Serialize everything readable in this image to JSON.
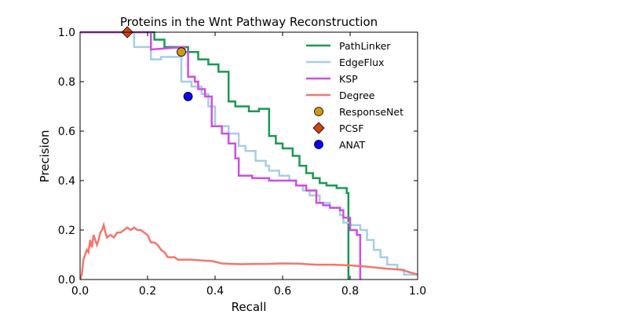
{
  "chart_data": {
    "type": "line",
    "title": "Proteins in the Wnt Pathway Reconstruction",
    "xlabel": "Recall",
    "ylabel": "Precision",
    "xlim": [
      0.0,
      1.0
    ],
    "ylim": [
      0.0,
      1.0
    ],
    "xticks": [
      "0.0",
      "0.2",
      "0.4",
      "0.6",
      "0.8",
      "1.0"
    ],
    "yticks": [
      "0.0",
      "0.2",
      "0.4",
      "0.6",
      "0.8",
      "1.0"
    ],
    "grid": false,
    "legend_position": "top-right",
    "series": [
      {
        "name": "PathLinker",
        "color": "#1a9850",
        "kind": "step",
        "points": [
          [
            0.0,
            1.0
          ],
          [
            0.22,
            1.0
          ],
          [
            0.22,
            0.97
          ],
          [
            0.25,
            0.97
          ],
          [
            0.25,
            0.94
          ],
          [
            0.32,
            0.94
          ],
          [
            0.32,
            0.92
          ],
          [
            0.35,
            0.92
          ],
          [
            0.35,
            0.89
          ],
          [
            0.38,
            0.89
          ],
          [
            0.38,
            0.87
          ],
          [
            0.41,
            0.87
          ],
          [
            0.41,
            0.84
          ],
          [
            0.44,
            0.84
          ],
          [
            0.44,
            0.72
          ],
          [
            0.46,
            0.72
          ],
          [
            0.46,
            0.7
          ],
          [
            0.5,
            0.7
          ],
          [
            0.5,
            0.68
          ],
          [
            0.53,
            0.68
          ],
          [
            0.53,
            0.69
          ],
          [
            0.56,
            0.69
          ],
          [
            0.56,
            0.58
          ],
          [
            0.58,
            0.58
          ],
          [
            0.58,
            0.55
          ],
          [
            0.6,
            0.55
          ],
          [
            0.6,
            0.53
          ],
          [
            0.63,
            0.53
          ],
          [
            0.63,
            0.5
          ],
          [
            0.65,
            0.5
          ],
          [
            0.65,
            0.46
          ],
          [
            0.67,
            0.46
          ],
          [
            0.67,
            0.43
          ],
          [
            0.69,
            0.43
          ],
          [
            0.69,
            0.41
          ],
          [
            0.71,
            0.41
          ],
          [
            0.71,
            0.39
          ],
          [
            0.73,
            0.39
          ],
          [
            0.73,
            0.38
          ],
          [
            0.76,
            0.38
          ],
          [
            0.76,
            0.37
          ],
          [
            0.79,
            0.37
          ],
          [
            0.79,
            0.35
          ],
          [
            0.795,
            0.35
          ],
          [
            0.795,
            0.33
          ],
          [
            0.795,
            0.0
          ]
        ]
      },
      {
        "name": "EdgeFlux",
        "color": "#a6cee3",
        "kind": "step",
        "points": [
          [
            0.0,
            1.0
          ],
          [
            0.16,
            1.0
          ],
          [
            0.16,
            0.94
          ],
          [
            0.21,
            0.94
          ],
          [
            0.21,
            0.89
          ],
          [
            0.24,
            0.89
          ],
          [
            0.24,
            0.9
          ],
          [
            0.3,
            0.9
          ],
          [
            0.3,
            0.8
          ],
          [
            0.33,
            0.8
          ],
          [
            0.33,
            0.78
          ],
          [
            0.36,
            0.78
          ],
          [
            0.36,
            0.75
          ],
          [
            0.38,
            0.75
          ],
          [
            0.38,
            0.7
          ],
          [
            0.4,
            0.7
          ],
          [
            0.4,
            0.62
          ],
          [
            0.44,
            0.62
          ],
          [
            0.44,
            0.59
          ],
          [
            0.47,
            0.59
          ],
          [
            0.47,
            0.54
          ],
          [
            0.49,
            0.54
          ],
          [
            0.49,
            0.52
          ],
          [
            0.52,
            0.52
          ],
          [
            0.52,
            0.48
          ],
          [
            0.55,
            0.48
          ],
          [
            0.55,
            0.46
          ],
          [
            0.56,
            0.46
          ],
          [
            0.56,
            0.44
          ],
          [
            0.59,
            0.44
          ],
          [
            0.59,
            0.42
          ],
          [
            0.62,
            0.42
          ],
          [
            0.62,
            0.4
          ],
          [
            0.64,
            0.4
          ],
          [
            0.64,
            0.38
          ],
          [
            0.66,
            0.38
          ],
          [
            0.66,
            0.36
          ],
          [
            0.68,
            0.36
          ],
          [
            0.68,
            0.34
          ],
          [
            0.71,
            0.34
          ],
          [
            0.71,
            0.31
          ],
          [
            0.74,
            0.31
          ],
          [
            0.74,
            0.29
          ],
          [
            0.77,
            0.29
          ],
          [
            0.77,
            0.26
          ],
          [
            0.78,
            0.26
          ],
          [
            0.78,
            0.23
          ],
          [
            0.8,
            0.23
          ],
          [
            0.8,
            0.22
          ],
          [
            0.83,
            0.22
          ],
          [
            0.83,
            0.2
          ],
          [
            0.85,
            0.2
          ],
          [
            0.85,
            0.16
          ],
          [
            0.87,
            0.16
          ],
          [
            0.87,
            0.12
          ],
          [
            0.89,
            0.12
          ],
          [
            0.89,
            0.09
          ],
          [
            0.91,
            0.09
          ],
          [
            0.91,
            0.06
          ],
          [
            0.94,
            0.06
          ],
          [
            0.94,
            0.04
          ],
          [
            0.96,
            0.04
          ],
          [
            0.96,
            0.02
          ],
          [
            1.0,
            0.02
          ]
        ]
      },
      {
        "name": "KSP",
        "color": "#cc4ee8",
        "kind": "step",
        "points": [
          [
            0.0,
            1.0
          ],
          [
            0.21,
            1.0
          ],
          [
            0.21,
            0.93
          ],
          [
            0.31,
            0.94
          ],
          [
            0.31,
            0.92
          ],
          [
            0.32,
            0.92
          ],
          [
            0.32,
            0.82
          ],
          [
            0.34,
            0.82
          ],
          [
            0.34,
            0.8
          ],
          [
            0.35,
            0.8
          ],
          [
            0.35,
            0.77
          ],
          [
            0.37,
            0.77
          ],
          [
            0.37,
            0.74
          ],
          [
            0.39,
            0.74
          ],
          [
            0.39,
            0.62
          ],
          [
            0.42,
            0.62
          ],
          [
            0.42,
            0.59
          ],
          [
            0.44,
            0.59
          ],
          [
            0.44,
            0.55
          ],
          [
            0.46,
            0.55
          ],
          [
            0.46,
            0.49
          ],
          [
            0.47,
            0.49
          ],
          [
            0.47,
            0.42
          ],
          [
            0.51,
            0.42
          ],
          [
            0.51,
            0.41
          ],
          [
            0.56,
            0.41
          ],
          [
            0.56,
            0.4
          ],
          [
            0.64,
            0.4
          ],
          [
            0.64,
            0.38
          ],
          [
            0.67,
            0.38
          ],
          [
            0.67,
            0.36
          ],
          [
            0.7,
            0.36
          ],
          [
            0.7,
            0.31
          ],
          [
            0.72,
            0.31
          ],
          [
            0.72,
            0.3
          ],
          [
            0.74,
            0.3
          ],
          [
            0.74,
            0.29
          ],
          [
            0.77,
            0.29
          ],
          [
            0.77,
            0.28
          ],
          [
            0.78,
            0.28
          ],
          [
            0.78,
            0.25
          ],
          [
            0.8,
            0.25
          ],
          [
            0.8,
            0.2
          ],
          [
            0.82,
            0.2
          ],
          [
            0.82,
            0.18
          ],
          [
            0.83,
            0.18
          ],
          [
            0.83,
            0.0
          ]
        ]
      },
      {
        "name": "Degree",
        "color": "#f4766e",
        "kind": "line",
        "points": [
          [
            0.0,
            0.0
          ],
          [
            0.005,
            0.02
          ],
          [
            0.01,
            0.08
          ],
          [
            0.015,
            0.1
          ],
          [
            0.02,
            0.12
          ],
          [
            0.025,
            0.11
          ],
          [
            0.03,
            0.16
          ],
          [
            0.035,
            0.13
          ],
          [
            0.04,
            0.18
          ],
          [
            0.045,
            0.16
          ],
          [
            0.05,
            0.14
          ],
          [
            0.055,
            0.16
          ],
          [
            0.06,
            0.19
          ],
          [
            0.065,
            0.2
          ],
          [
            0.07,
            0.22
          ],
          [
            0.075,
            0.19
          ],
          [
            0.08,
            0.17
          ],
          [
            0.09,
            0.18
          ],
          [
            0.1,
            0.17
          ],
          [
            0.11,
            0.19
          ],
          [
            0.12,
            0.19
          ],
          [
            0.13,
            0.2
          ],
          [
            0.14,
            0.21
          ],
          [
            0.15,
            0.2
          ],
          [
            0.16,
            0.21
          ],
          [
            0.17,
            0.2
          ],
          [
            0.18,
            0.2
          ],
          [
            0.19,
            0.19
          ],
          [
            0.2,
            0.18
          ],
          [
            0.21,
            0.15
          ],
          [
            0.22,
            0.15
          ],
          [
            0.23,
            0.14
          ],
          [
            0.24,
            0.12
          ],
          [
            0.25,
            0.11
          ],
          [
            0.26,
            0.09
          ],
          [
            0.27,
            0.09
          ],
          [
            0.28,
            0.09
          ],
          [
            0.29,
            0.08
          ],
          [
            0.31,
            0.08
          ],
          [
            0.33,
            0.08
          ],
          [
            0.36,
            0.077
          ],
          [
            0.39,
            0.075
          ],
          [
            0.42,
            0.065
          ],
          [
            0.45,
            0.063
          ],
          [
            0.48,
            0.062
          ],
          [
            0.52,
            0.063
          ],
          [
            0.55,
            0.063
          ],
          [
            0.6,
            0.065
          ],
          [
            0.65,
            0.064
          ],
          [
            0.7,
            0.06
          ],
          [
            0.75,
            0.06
          ],
          [
            0.8,
            0.057
          ],
          [
            0.85,
            0.052
          ],
          [
            0.9,
            0.045
          ],
          [
            0.95,
            0.04
          ],
          [
            1.0,
            0.02
          ]
        ]
      }
    ],
    "points": [
      {
        "name": "ResponseNet",
        "color": "#d19b11",
        "marker": "circle",
        "x": 0.3,
        "y": 0.92
      },
      {
        "name": "PCSF",
        "color": "#d6420f",
        "marker": "diamond",
        "x": 0.14,
        "y": 1.0
      },
      {
        "name": "ANAT",
        "color": "#0b00ff",
        "marker": "circle",
        "x": 0.32,
        "y": 0.74
      }
    ]
  }
}
